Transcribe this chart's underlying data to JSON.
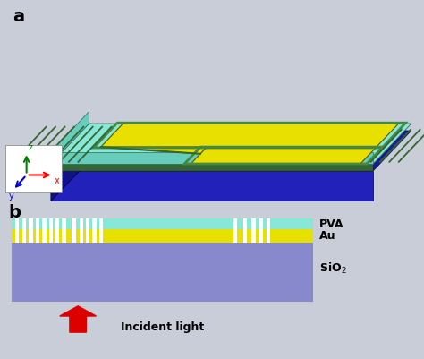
{
  "bg_color": "#c8cdd8",
  "colors": {
    "cyan": "#88e8d8",
    "cyan_top": "#99eedf",
    "cyan_side": "#66ccbb",
    "yellow": "#e8e000",
    "green_border": "#448844",
    "blue_deep": "#1a1a99",
    "blue_side": "#2222bb",
    "green_stripe": "#336633",
    "purple_sio2": "#8888cc",
    "white": "#ffffff"
  },
  "labels": {
    "a": "a",
    "b": "b",
    "PVA": "PVA",
    "Au": "Au",
    "SiO2": "SiO₂",
    "incident": "Incident light"
  },
  "arrow_color": "#dd0000"
}
